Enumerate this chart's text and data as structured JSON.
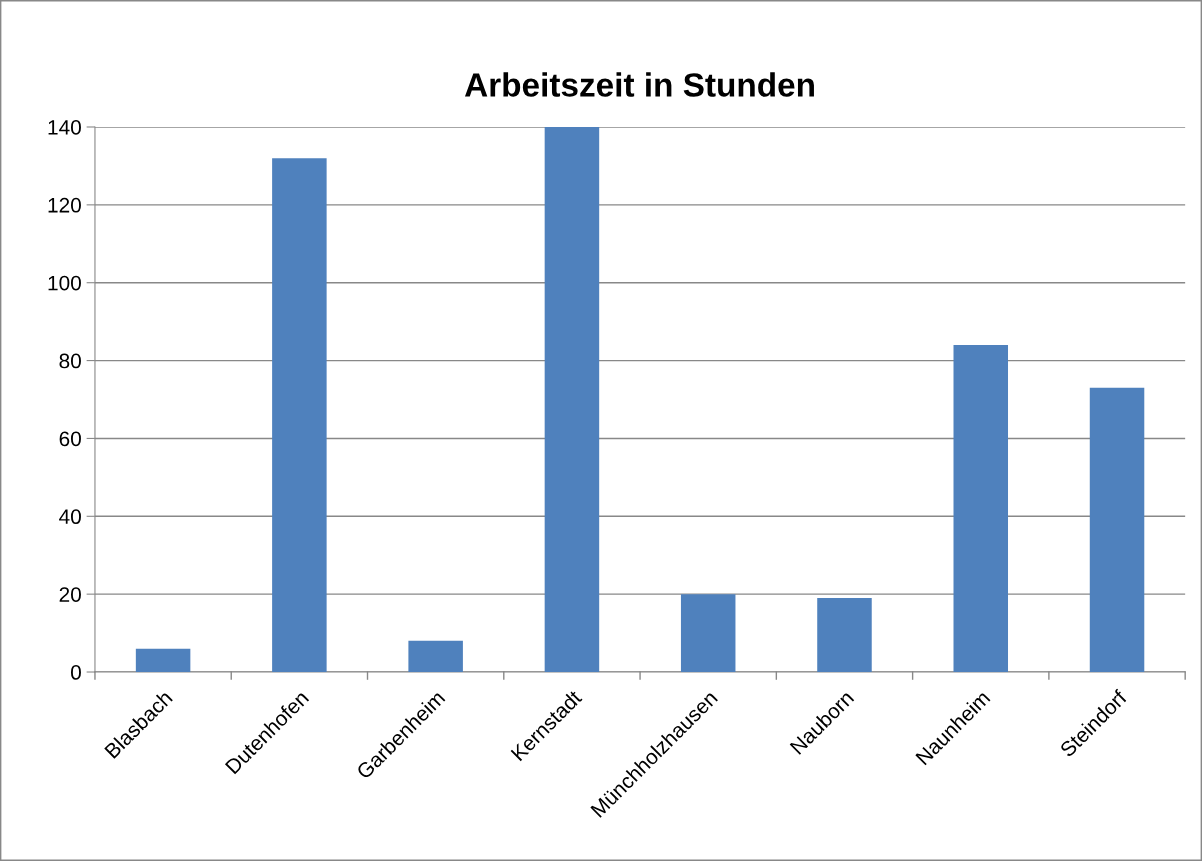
{
  "chart_data": {
    "type": "bar",
    "title": "Arbeitszeit in Stunden",
    "categories": [
      "Blasbach",
      "Dutenhofen",
      "Garbenheim",
      "Kernstadt",
      "Münchholzhausen",
      "Nauborn",
      "Naunheim",
      "Steindorf"
    ],
    "values": [
      6,
      132,
      8,
      140,
      20,
      19,
      84,
      73
    ],
    "color": "#4f81bd",
    "ylim": [
      0,
      140
    ],
    "yticks": [
      0,
      20,
      40,
      60,
      80,
      100,
      120,
      140
    ],
    "grid": "y",
    "legend": false
  }
}
